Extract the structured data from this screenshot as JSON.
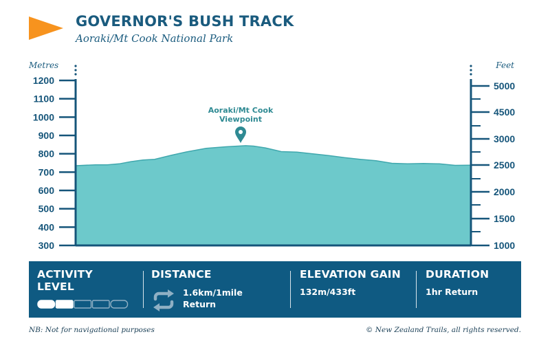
{
  "header": {
    "title": "GOVERNOR'S BUSH TRACK",
    "subtitle": "Aoraki/Mt Cook National Park"
  },
  "chart_data": {
    "type": "area",
    "title": "GOVERNOR'S BUSH TRACK",
    "subtitle": "Aoraki/Mt Cook National Park",
    "y_left_label": "Metres",
    "y_right_label": "Feet",
    "y_left_ticks": [
      "1200",
      "1100",
      "1000",
      "900",
      "800",
      "700",
      "600",
      "500",
      "400",
      "300"
    ],
    "y_right_ticks": [
      "5000",
      "4500",
      "3000",
      "2500",
      "2000",
      "1500",
      "1000"
    ],
    "ylim": [
      300,
      1200
    ],
    "x": [
      0,
      0.05,
      0.08,
      0.11,
      0.14,
      0.17,
      0.2,
      0.24,
      0.28,
      0.33,
      0.38,
      0.43,
      0.45,
      0.48,
      0.52,
      0.56,
      0.6,
      0.64,
      0.68,
      0.72,
      0.76,
      0.8,
      0.84,
      0.88,
      0.92,
      0.96,
      1.0
    ],
    "values": [
      735,
      740,
      740,
      745,
      757,
      766,
      770,
      791,
      810,
      830,
      838,
      844,
      842,
      832,
      812,
      809,
      800,
      790,
      779,
      770,
      762,
      748,
      745,
      747,
      745,
      737,
      738
    ],
    "series": [
      {
        "values": [
          735,
          740,
          740,
          745,
          757,
          766,
          770,
          791,
          810,
          830,
          838,
          844,
          842,
          832,
          812,
          809,
          800,
          790,
          779,
          770,
          762,
          748,
          745,
          747,
          745,
          737,
          738
        ]
      }
    ],
    "annotation": {
      "text_line1": "Aoraki/Mt Cook",
      "text_line2": "Viewpoint",
      "x": 0.4,
      "y": 844
    },
    "grid": false,
    "colors": {
      "fill": "#6dc9cb",
      "stroke": "#3fa7ad",
      "axis": "#15557a"
    }
  },
  "info": {
    "activity": {
      "title_line1": "ACTIVITY",
      "title_line2": "LEVEL",
      "level": 2,
      "max": 5
    },
    "distance": {
      "title": "DISTANCE",
      "value_line1": "1.6km/1mile",
      "value_line2": "Return",
      "icon": "return-loop-icon"
    },
    "elevation": {
      "title": "ELEVATION GAIN",
      "value": "132m/433ft"
    },
    "duration": {
      "title": "DURATION",
      "value": "1hr Return"
    }
  },
  "footer": {
    "disclaimer": "NB: Not for navigational purposes",
    "copyright": "© New Zealand Trails, all rights reserved."
  },
  "colors": {
    "brand": "#1a5b7e",
    "accent": "#f7931e",
    "bar": "#0f5a82"
  }
}
